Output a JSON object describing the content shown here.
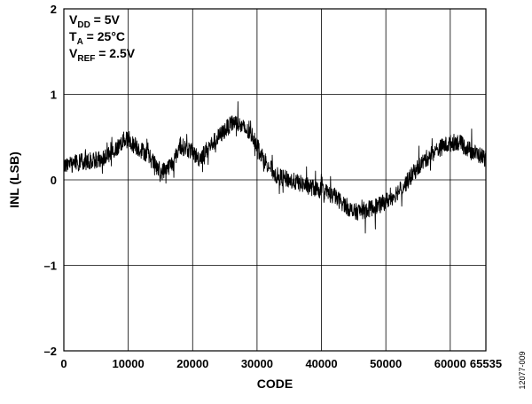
{
  "chart_data": {
    "type": "line",
    "title": "",
    "xlabel": "CODE",
    "ylabel": "INL (LSB)",
    "xlim": [
      0,
      65535
    ],
    "ylim": [
      -2,
      2
    ],
    "xticks": [
      0,
      10000,
      20000,
      30000,
      40000,
      50000,
      60000,
      65535
    ],
    "xtick_labels": [
      "0",
      "10000",
      "20000",
      "30000",
      "40000",
      "50000",
      "60000",
      "65535"
    ],
    "yticks": [
      -2,
      -1,
      0,
      1,
      2
    ],
    "ytick_labels": [
      "–2",
      "–1",
      "0",
      "1",
      "2"
    ],
    "grid": true,
    "annotations": [
      {
        "main": "V",
        "sub": "DD",
        "rest": " = 5V"
      },
      {
        "main": "T",
        "sub": "A",
        "rest": " = 25°C"
      },
      {
        "main": "V",
        "sub": "REF",
        "rest": " = 2.5V"
      }
    ],
    "figure_id": "12077-009",
    "series": [
      {
        "color": "#000000",
        "band_halfwidth": 0.1,
        "x": [
          0,
          2000,
          4000,
          6000,
          8000,
          9500,
          11000,
          13000,
          15000,
          17000,
          18000,
          19500,
          21000,
          22500,
          24000,
          25500,
          26500,
          28000,
          29500,
          31000,
          33000,
          35000,
          37000,
          39000,
          41000,
          43000,
          45000,
          47000,
          49000,
          51000,
          53000,
          55000,
          57000,
          59000,
          61000,
          63000,
          65535
        ],
        "values": [
          0.15,
          0.2,
          0.22,
          0.25,
          0.35,
          0.48,
          0.4,
          0.3,
          0.08,
          0.2,
          0.4,
          0.35,
          0.25,
          0.38,
          0.5,
          0.62,
          0.68,
          0.6,
          0.5,
          0.25,
          0.05,
          0.0,
          -0.05,
          -0.1,
          -0.15,
          -0.25,
          -0.38,
          -0.35,
          -0.3,
          -0.2,
          -0.05,
          0.15,
          0.3,
          0.4,
          0.45,
          0.35,
          0.25
        ]
      }
    ]
  }
}
